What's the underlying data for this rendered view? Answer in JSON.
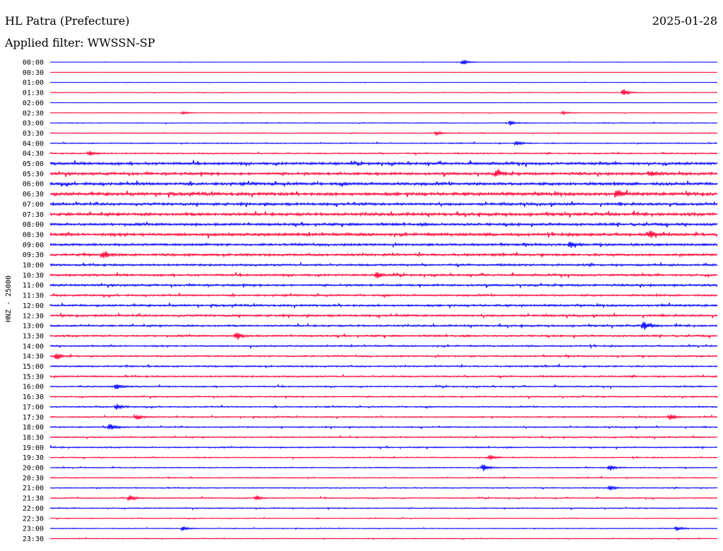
{
  "header": {
    "station": "HL Patra (Prefecture)",
    "date": "2025-01-28",
    "filter": "Applied filter: WWSSN-SP"
  },
  "chart_data": {
    "type": "line",
    "title": "HL Patra (Prefecture)",
    "subtitle": "Applied filter: WWSSN-SP",
    "ylabel": "HNZ - 25000",
    "rows": [
      "00:00",
      "00:30",
      "01:00",
      "01:30",
      "02:00",
      "02:30",
      "03:00",
      "03:30",
      "04:00",
      "04:30",
      "05:00",
      "05:30",
      "06:00",
      "06:30",
      "07:00",
      "07:30",
      "08:00",
      "08:30",
      "09:00",
      "09:30",
      "10:00",
      "10:30",
      "11:00",
      "11:30",
      "12:00",
      "12:30",
      "13:00",
      "13:30",
      "14:00",
      "14:30",
      "15:00",
      "15:30",
      "16:00",
      "16:30",
      "17:00",
      "17:30",
      "18:00",
      "18:30",
      "19:00",
      "19:30",
      "20:00",
      "20:30",
      "21:00",
      "21:30",
      "22:00",
      "22:30",
      "23:00",
      "23:30"
    ],
    "series_colors": [
      "#0000ff",
      "#ff0033"
    ],
    "noise_level": [
      0.15,
      0.1,
      0.15,
      0.2,
      0.1,
      0.2,
      0.3,
      0.3,
      0.4,
      0.5,
      1.0,
      1.0,
      1.1,
      1.2,
      1.0,
      1.1,
      1.0,
      1.1,
      0.9,
      0.9,
      0.8,
      0.8,
      0.8,
      0.7,
      0.8,
      0.8,
      0.7,
      0.7,
      0.6,
      0.6,
      0.6,
      0.6,
      0.5,
      0.5,
      0.5,
      0.5,
      0.5,
      0.5,
      0.5,
      0.4,
      0.4,
      0.4,
      0.4,
      0.4,
      0.4,
      0.3,
      0.3,
      0.3
    ],
    "events": [
      {
        "row": 0,
        "x": 0.62,
        "amp": 4
      },
      {
        "row": 3,
        "x": 0.86,
        "amp": 5
      },
      {
        "row": 5,
        "x": 0.2,
        "amp": 2
      },
      {
        "row": 5,
        "x": 0.77,
        "amp": 2
      },
      {
        "row": 6,
        "x": 0.69,
        "amp": 3
      },
      {
        "row": 7,
        "x": 0.58,
        "amp": 3
      },
      {
        "row": 8,
        "x": 0.7,
        "amp": 3
      },
      {
        "row": 9,
        "x": 0.06,
        "amp": 3
      },
      {
        "row": 11,
        "x": 0.67,
        "amp": 5
      },
      {
        "row": 11,
        "x": 0.9,
        "amp": 4
      },
      {
        "row": 13,
        "x": 0.85,
        "amp": 5
      },
      {
        "row": 17,
        "x": 0.9,
        "amp": 5
      },
      {
        "row": 18,
        "x": 0.78,
        "amp": 4
      },
      {
        "row": 19,
        "x": 0.08,
        "amp": 5
      },
      {
        "row": 21,
        "x": 0.49,
        "amp": 4
      },
      {
        "row": 26,
        "x": 0.89,
        "amp": 6
      },
      {
        "row": 27,
        "x": 0.28,
        "amp": 5
      },
      {
        "row": 29,
        "x": 0.01,
        "amp": 5
      },
      {
        "row": 32,
        "x": 0.1,
        "amp": 4
      },
      {
        "row": 34,
        "x": 0.1,
        "amp": 4
      },
      {
        "row": 35,
        "x": 0.13,
        "amp": 4
      },
      {
        "row": 35,
        "x": 0.93,
        "amp": 4
      },
      {
        "row": 36,
        "x": 0.09,
        "amp": 5
      },
      {
        "row": 39,
        "x": 0.66,
        "amp": 3
      },
      {
        "row": 40,
        "x": 0.65,
        "amp": 5
      },
      {
        "row": 40,
        "x": 0.84,
        "amp": 3
      },
      {
        "row": 42,
        "x": 0.84,
        "amp": 3
      },
      {
        "row": 43,
        "x": 0.12,
        "amp": 4
      },
      {
        "row": 43,
        "x": 0.31,
        "amp": 3
      },
      {
        "row": 46,
        "x": 0.2,
        "amp": 3
      },
      {
        "row": 46,
        "x": 0.94,
        "amp": 3
      }
    ]
  }
}
